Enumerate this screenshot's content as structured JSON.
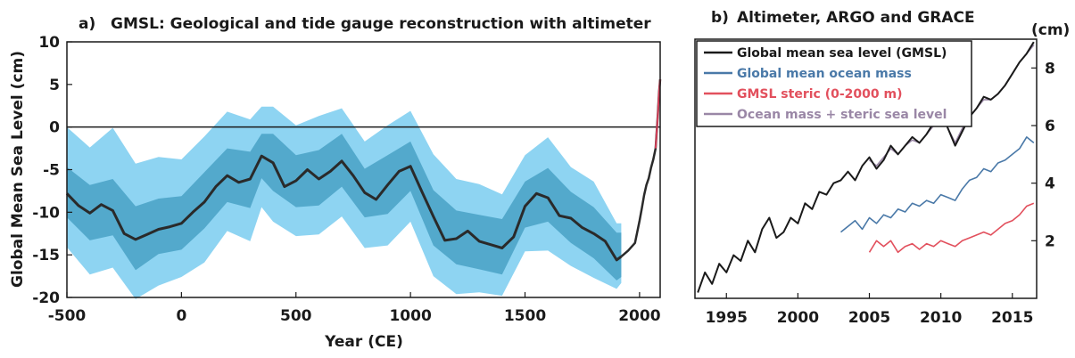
{
  "chart_data": [
    {
      "type": "line",
      "panel_label": "a)",
      "title": "GMSL: Geological and tide gauge reconstruction with altimeter",
      "xlabel": "Year (CE)",
      "ylabel": "Global Mean Sea Level (cm)",
      "xlim": [
        -500,
        2090
      ],
      "ylim": [
        -20,
        10
      ],
      "xticks": [
        -500,
        0,
        500,
        1000,
        1500,
        2000
      ],
      "yticks": [
        10,
        5,
        0,
        -5,
        -10,
        -15,
        -20
      ],
      "grid": false,
      "legend": "none",
      "zero_line": 0,
      "colors": {
        "outer_band": "#8ed4f2",
        "inner_band": "#53a9cc",
        "mean": "#2a2a2a",
        "recent": "#d8405a",
        "axes": "#1a1a1a"
      },
      "series": [
        {
          "role": "mean",
          "x": [
            -500,
            -450,
            -400,
            -350,
            -300,
            -250,
            -200,
            -150,
            -100,
            -50,
            0,
            50,
            100,
            150,
            200,
            250,
            300,
            350,
            400,
            450,
            500,
            550,
            600,
            650,
            700,
            750,
            800,
            850,
            900,
            950,
            1000,
            1050,
            1100,
            1150,
            1200,
            1250,
            1300,
            1350,
            1400,
            1450,
            1500,
            1550,
            1600,
            1650,
            1700,
            1750,
            1800,
            1850,
            1900,
            1920
          ],
          "y": [
            -7.8,
            -9.2,
            -10.1,
            -9.1,
            -9.8,
            -12.5,
            -13.2,
            -12.6,
            -12.0,
            -11.7,
            -11.3,
            -10.0,
            -8.8,
            -7.0,
            -5.7,
            -6.5,
            -6.1,
            -3.4,
            -4.2,
            -7.0,
            -6.3,
            -5.0,
            -6.1,
            -5.2,
            -4.0,
            -5.7,
            -7.7,
            -8.5,
            -6.8,
            -5.2,
            -4.6,
            -7.6,
            -10.5,
            -13.3,
            -13.1,
            -12.2,
            -13.4,
            -13.8,
            -14.2,
            -12.9,
            -9.3,
            -7.8,
            -8.3,
            -10.4,
            -10.7,
            -11.8,
            -12.5,
            -13.4,
            -15.6,
            -15.2
          ]
        },
        {
          "role": "inner_band",
          "x": [
            -500,
            -400,
            -300,
            -200,
            -100,
            0,
            100,
            200,
            300,
            350,
            400,
            500,
            600,
            700,
            800,
            900,
            1000,
            1100,
            1200,
            1300,
            1400,
            1500,
            1600,
            1700,
            1800,
            1900,
            1920
          ],
          "upper": [
            -4.7,
            -6.8,
            -6.1,
            -9.3,
            -8.4,
            -8.1,
            -5.3,
            -2.5,
            -2.9,
            -0.8,
            -0.8,
            -3.3,
            -2.7,
            -0.8,
            -4.9,
            -3.3,
            -1.7,
            -7.4,
            -9.8,
            -10.3,
            -10.8,
            -6.4,
            -4.8,
            -7.6,
            -9.4,
            -12.4,
            -12.4
          ],
          "lower": [
            -10.6,
            -13.3,
            -12.7,
            -16.8,
            -14.9,
            -14.4,
            -11.9,
            -8.8,
            -9.5,
            -6.0,
            -7.5,
            -9.4,
            -9.2,
            -7.0,
            -10.6,
            -10.2,
            -7.5,
            -13.9,
            -16.1,
            -16.7,
            -17.3,
            -11.8,
            -11.1,
            -13.6,
            -15.4,
            -18.0,
            -17.6
          ]
        },
        {
          "role": "outer_band",
          "x": [
            -500,
            -400,
            -300,
            -200,
            -100,
            0,
            100,
            200,
            300,
            350,
            400,
            500,
            600,
            700,
            800,
            900,
            1000,
            1100,
            1200,
            1300,
            1400,
            1500,
            1600,
            1700,
            1800,
            1900,
            1920
          ],
          "upper": [
            0.0,
            -2.4,
            -0.1,
            -4.3,
            -3.5,
            -3.8,
            -1.1,
            1.8,
            0.9,
            2.4,
            2.4,
            0.2,
            1.3,
            2.2,
            -1.7,
            0.2,
            1.9,
            -3.2,
            -6.1,
            -6.7,
            -7.9,
            -3.3,
            -1.2,
            -4.7,
            -6.4,
            -11.3,
            -11.3
          ],
          "lower": [
            -14.1,
            -17.3,
            -16.5,
            -20.2,
            -18.6,
            -17.6,
            -15.9,
            -12.2,
            -13.4,
            -9.4,
            -11.1,
            -12.8,
            -12.6,
            -10.5,
            -14.2,
            -13.9,
            -11.1,
            -17.5,
            -19.6,
            -19.4,
            -19.8,
            -14.6,
            -14.5,
            -16.3,
            -17.7,
            -19.0,
            -18.3
          ]
        },
        {
          "role": "recent",
          "x": [
            1920,
            1950,
            1980,
            2000,
            2010,
            2020,
            2030,
            2040,
            2050,
            2060,
            2070,
            2080,
            2085,
            2090
          ],
          "y": [
            -15.2,
            -14.5,
            -13.6,
            -11.0,
            -9.5,
            -8.0,
            -6.8,
            -6.0,
            -4.8,
            -3.8,
            -2.5,
            1.5,
            4.0,
            5.6
          ]
        }
      ]
    },
    {
      "type": "line",
      "panel_label": "b)",
      "title": "Altimeter, ARGO and GRACE",
      "unit_label": "(cm)",
      "xlim": [
        1992.8,
        2016.7
      ],
      "ylim": [
        0,
        9
      ],
      "xticks": [
        1995,
        2000,
        2005,
        2010,
        2015
      ],
      "yticks": [
        2,
        4,
        6,
        8
      ],
      "y_axis_side": "right",
      "grid": false,
      "legend": "top-left",
      "colors": {
        "gmsl": "#1a1a1a",
        "mass": "#4a79a8",
        "steric": "#e2505d",
        "combined": "#9a87a6"
      },
      "series": [
        {
          "name": "Global mean sea level (GMSL)",
          "color": "#1a1a1a",
          "x": [
            1993.0,
            1993.5,
            1994.0,
            1994.5,
            1995.0,
            1995.5,
            1996.0,
            1996.5,
            1997.0,
            1997.5,
            1998.0,
            1998.5,
            1999.0,
            1999.5,
            2000.0,
            2000.5,
            2001.0,
            2001.5,
            2002.0,
            2002.5,
            2003.0,
            2003.5,
            2004.0,
            2004.5,
            2005.0,
            2005.5,
            2006.0,
            2006.5,
            2007.0,
            2007.5,
            2008.0,
            2008.5,
            2009.0,
            2009.5,
            2010.0,
            2010.5,
            2011.0,
            2011.5,
            2012.0,
            2012.5,
            2013.0,
            2013.5,
            2014.0,
            2014.5,
            2015.0,
            2015.5,
            2016.0,
            2016.5
          ],
          "y": [
            0.2,
            0.9,
            0.5,
            1.2,
            0.9,
            1.5,
            1.3,
            2.0,
            1.6,
            2.4,
            2.8,
            2.1,
            2.3,
            2.8,
            2.6,
            3.3,
            3.1,
            3.7,
            3.6,
            4.0,
            4.1,
            4.4,
            4.1,
            4.6,
            4.9,
            4.5,
            4.8,
            5.3,
            5.0,
            5.3,
            5.6,
            5.4,
            5.7,
            6.1,
            6.5,
            5.9,
            5.3,
            5.8,
            6.3,
            6.6,
            7.0,
            6.9,
            7.1,
            7.4,
            7.8,
            8.2,
            8.5,
            8.9
          ]
        },
        {
          "name": "Global mean ocean mass",
          "color": "#4a79a8",
          "x": [
            2003.0,
            2003.5,
            2004.0,
            2004.5,
            2005.0,
            2005.5,
            2006.0,
            2006.5,
            2007.0,
            2007.5,
            2008.0,
            2008.5,
            2009.0,
            2009.5,
            2010.0,
            2010.5,
            2011.0,
            2011.5,
            2012.0,
            2012.5,
            2013.0,
            2013.5,
            2014.0,
            2014.5,
            2015.0,
            2015.5,
            2016.0,
            2016.5
          ],
          "y": [
            2.3,
            2.5,
            2.7,
            2.4,
            2.8,
            2.6,
            2.9,
            2.8,
            3.1,
            3.0,
            3.3,
            3.2,
            3.4,
            3.3,
            3.6,
            3.5,
            3.4,
            3.8,
            4.1,
            4.2,
            4.5,
            4.4,
            4.7,
            4.8,
            5.0,
            5.2,
            5.6,
            5.4
          ]
        },
        {
          "name": "GMSL steric (0-2000 m)",
          "color": "#e2505d",
          "x": [
            2005.0,
            2005.5,
            2006.0,
            2006.5,
            2007.0,
            2007.5,
            2008.0,
            2008.5,
            2009.0,
            2009.5,
            2010.0,
            2010.5,
            2011.0,
            2011.5,
            2012.0,
            2012.5,
            2013.0,
            2013.5,
            2014.0,
            2014.5,
            2015.0,
            2015.5,
            2016.0,
            2016.5
          ],
          "y": [
            1.6,
            2.0,
            1.8,
            2.0,
            1.6,
            1.8,
            1.9,
            1.7,
            1.9,
            1.8,
            2.0,
            1.9,
            1.8,
            2.0,
            2.1,
            2.2,
            2.3,
            2.2,
            2.4,
            2.6,
            2.7,
            2.9,
            3.2,
            3.3
          ]
        },
        {
          "name": "Ocean mass + steric sea level",
          "color": "#9a87a6",
          "x": [
            2005.0,
            2005.5,
            2006.0,
            2006.5,
            2007.0,
            2007.5,
            2008.0,
            2008.5,
            2009.0,
            2009.5,
            2010.0,
            2010.5,
            2011.0,
            2011.5,
            2012.0,
            2012.5,
            2013.0,
            2013.5,
            2014.0,
            2014.5,
            2015.0,
            2015.5,
            2016.0,
            2016.5
          ],
          "y": [
            4.8,
            4.6,
            4.9,
            5.2,
            5.0,
            5.3,
            5.5,
            5.4,
            5.7,
            6.0,
            6.4,
            5.9,
            5.4,
            5.9,
            6.3,
            6.6,
            6.9,
            6.9,
            7.1,
            7.4,
            7.8,
            8.2,
            8.5,
            8.8
          ]
        }
      ]
    }
  ]
}
